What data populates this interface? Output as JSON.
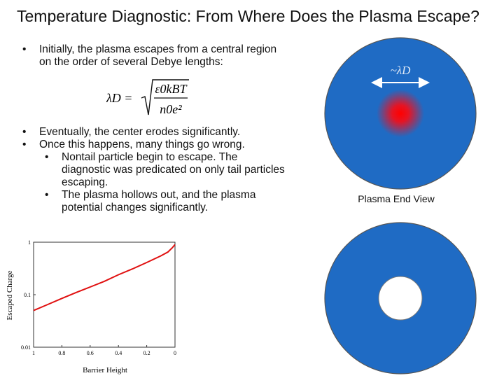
{
  "slide": {
    "title": "Temperature Diagnostic: From Where Does the Plasma Escape?",
    "bullets": [
      {
        "text": "Initially, the plasma escapes from a central region on the order of several Debye lengths:"
      },
      {
        "text": "Eventually, the center erodes significantly."
      },
      {
        "text": "Once this happens, many things go wrong."
      }
    ],
    "sub_bullets": [
      {
        "text": "Nontail particle begin to escape.  The diagnostic was predicated on only tail particles escaping."
      },
      {
        "text": "The plasma hollows out, and the plasma potential changes significantly."
      }
    ],
    "formula": {
      "lhs": "λD =",
      "numerator": "ε0kBT",
      "denominator": "n0e²"
    }
  },
  "diagram": {
    "debye_label": "~λD",
    "plasma_label": "Plasma End View",
    "colors": {
      "plasma": "#1f6bc4",
      "outline": "#555555",
      "core": "#ff0000",
      "hole": "#ffffff"
    }
  },
  "chart_data": {
    "type": "line",
    "xlabel": "Barrier Height",
    "ylabel": "Escaped Charge",
    "x_ticks": [
      "1",
      "0.8",
      "0.6",
      "0.4",
      "0.2",
      "0"
    ],
    "y_ticks": [
      "0.01",
      "0.1",
      "1"
    ],
    "xlim": [
      1,
      0
    ],
    "ylim": [
      0.01,
      1
    ],
    "y_scale": "log",
    "grid": false,
    "series": [
      {
        "color": "#e01010",
        "x": [
          1.0,
          0.9,
          0.8,
          0.7,
          0.6,
          0.5,
          0.4,
          0.3,
          0.2,
          0.1,
          0.05,
          0.02,
          0.0
        ],
        "y": [
          0.05,
          0.065,
          0.085,
          0.11,
          0.14,
          0.18,
          0.24,
          0.31,
          0.41,
          0.55,
          0.65,
          0.78,
          0.9
        ]
      }
    ]
  }
}
